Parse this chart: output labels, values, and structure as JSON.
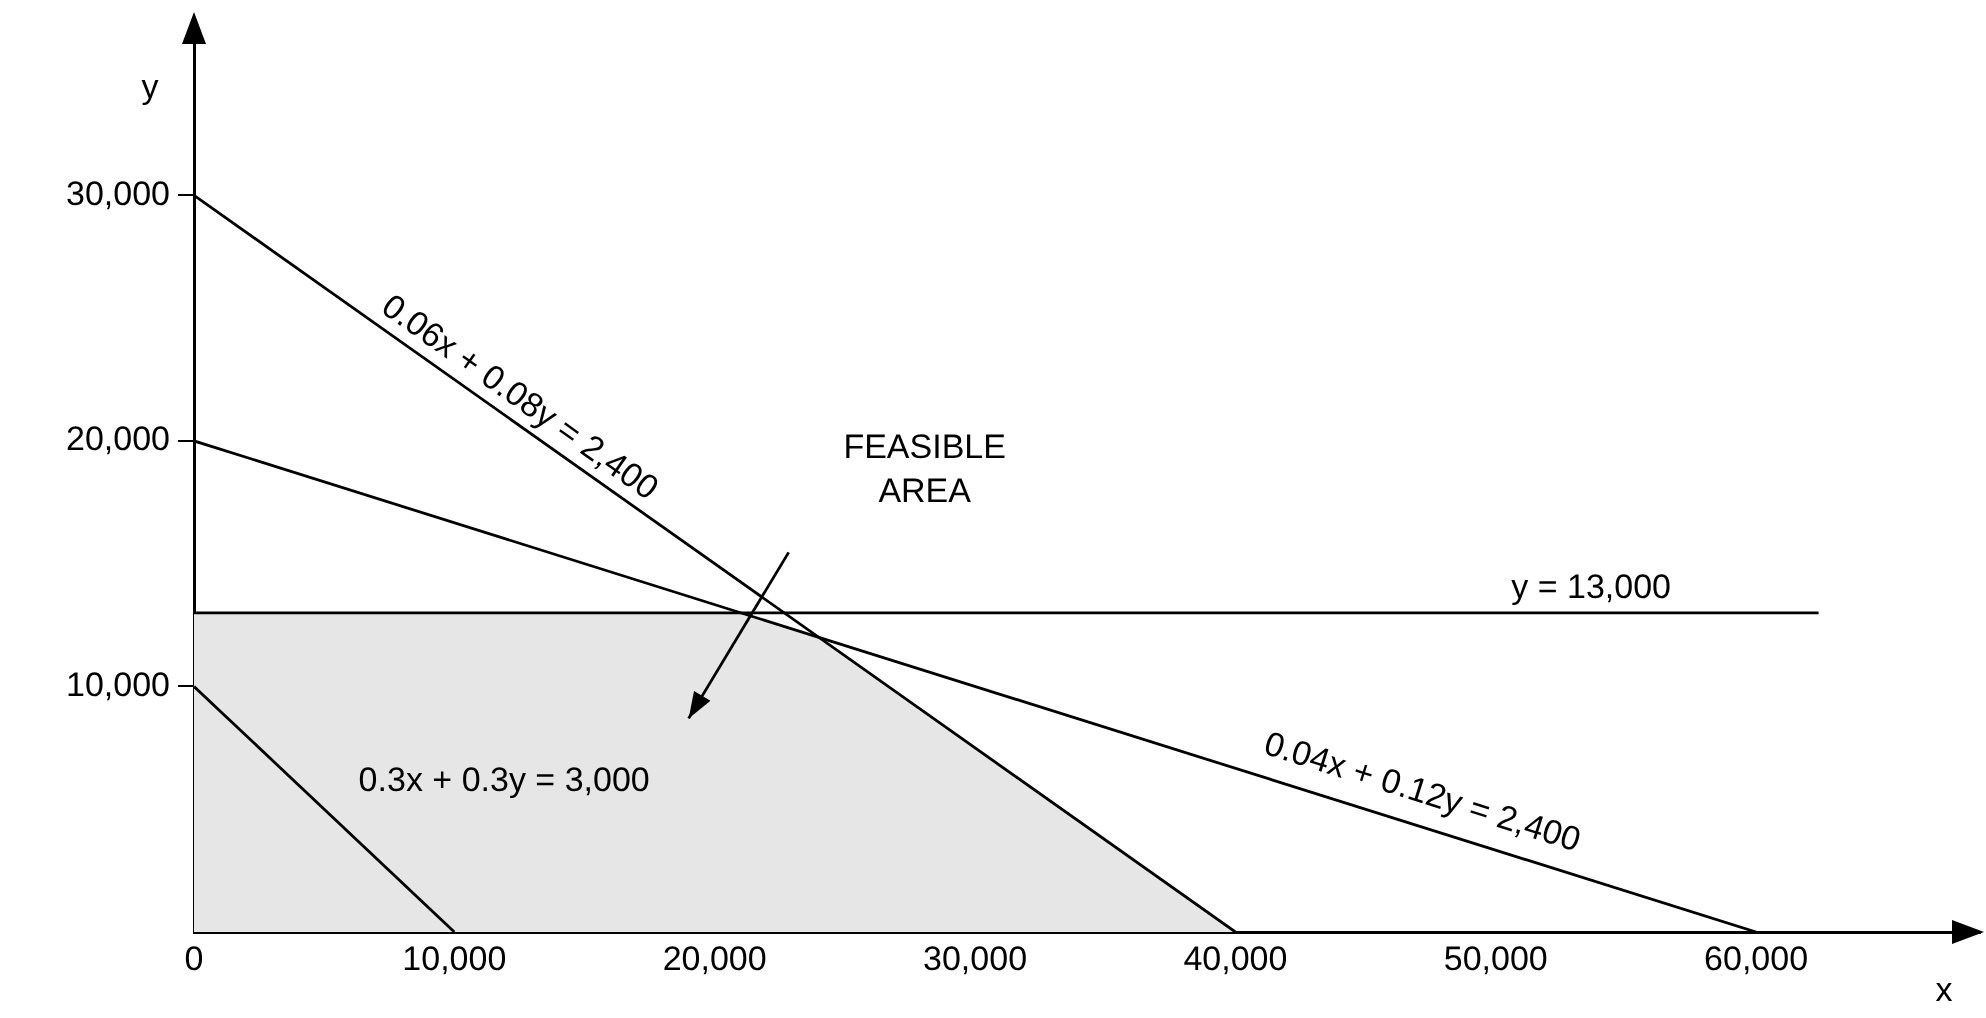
{
  "chart_data": {
    "type": "line",
    "xlabel": "x",
    "ylabel": "y",
    "xlim": [
      0,
      68600
    ],
    "ylim": [
      0,
      36800
    ],
    "xticks": [
      {
        "value": 0,
        "label": "0"
      },
      {
        "value": 10000,
        "label": "10,000"
      },
      {
        "value": 20000,
        "label": "20,000"
      },
      {
        "value": 30000,
        "label": "30,000"
      },
      {
        "value": 40000,
        "label": "40,000"
      },
      {
        "value": 50000,
        "label": "50,000"
      },
      {
        "value": 60000,
        "label": "60,000"
      }
    ],
    "yticks": [
      {
        "value": 10000,
        "label": "10,000"
      },
      {
        "value": 20000,
        "label": "20,000"
      },
      {
        "value": 30000,
        "label": "30,000"
      }
    ],
    "grid": false,
    "legend": false,
    "marker": "none",
    "line_style": "solid",
    "series": [
      {
        "type": "area",
        "color": "#e6e6e6",
        "x": [
          0,
          0,
          21000,
          24000,
          40000
        ],
        "values": [
          0,
          13000,
          13000,
          12000,
          0
        ]
      },
      {
        "name": "0.06x + 0.08y = 2,400",
        "color": "#000000",
        "x": [
          0,
          40000
        ],
        "values": [
          30000,
          0
        ]
      },
      {
        "name": "0.04x + 0.12y = 2,400",
        "color": "#000000",
        "x": [
          0,
          60000
        ],
        "values": [
          20000,
          0
        ]
      },
      {
        "name": "y = 13,000",
        "color": "#000000",
        "x": [
          0,
          62400
        ],
        "values": [
          13000,
          13000
        ]
      },
      {
        "name": "0.3x + 0.3y = 3,000",
        "color": "#000000",
        "x": [
          0,
          10000
        ],
        "values": [
          10000,
          0
        ]
      }
    ],
    "annotations": [
      "FEASIBLE AREA"
    ]
  }
}
